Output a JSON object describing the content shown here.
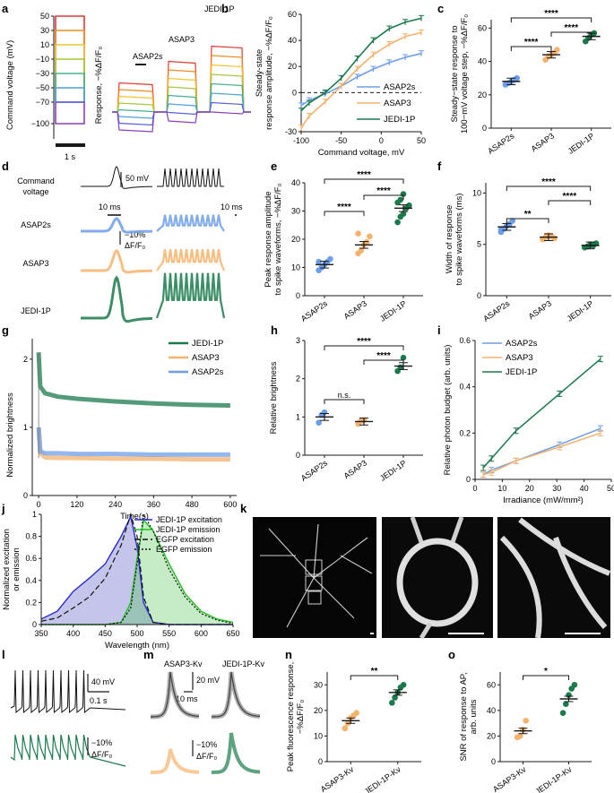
{
  "colors": {
    "asap2s": "#6d9eeb",
    "asap3": "#f6b26b",
    "jedi": "#1a7a4c",
    "axis": "#1a1a1a",
    "bluefill": "#3f3fbf",
    "greenfill": "#3fbf3f"
  },
  "panels": {
    "a": "a",
    "b": "b",
    "c": "c",
    "d": "d",
    "e": "e",
    "f": "f",
    "g": "g",
    "h": "h",
    "i": "i",
    "j": "j",
    "k": "k",
    "l": "l",
    "m": "m",
    "n": "n",
    "o": "o"
  },
  "texts": {
    "a_ylabel": "Command voltage (mV)",
    "a_ticks": [
      "50",
      "30",
      "10",
      "−10",
      "−30",
      "−50",
      "−70",
      "−100"
    ],
    "a_scale": "1 s",
    "a2_ylabel": "Response, −%ΔF/F₀",
    "a2_labels": [
      "ASAP2s",
      "ASAP3",
      "JEDI-1P"
    ],
    "d_command": "Command",
    "d_voltage": "voltage",
    "d_50mv": "50 mV",
    "d_10ms_left": "10 ms",
    "d_10ms_right": "10 ms",
    "d_rows": [
      "ASAP2s",
      "ASAP3",
      "JEDI-1P"
    ],
    "d_dff1": "−10%",
    "d_dff2": "ΔF/F₀",
    "g_xlabel": "Time(s)",
    "g_ylabel": "Normalized brightness",
    "j_ylabel1": "Normalized excitation",
    "j_ylabel2": "or emission",
    "j_xlabel": "Wavelength (nm)",
    "j_legend": [
      "JEDI-1P excitation",
      "JEDI-1P emission",
      "EGFP excitation",
      "EGFP emission"
    ],
    "l_40mv": "40 mV",
    "l_01s": "0.1 s",
    "l_dff1": "−10%",
    "l_dff2": "ΔF/F₀",
    "m_labels": [
      "ASAP3-Kv",
      "JEDI-1P-Kv"
    ],
    "m_20mv": "20 mV",
    "m_10ms": "10 ms",
    "m_dff1": "−10%",
    "m_dff2": "ΔF/F₀"
  },
  "chart_data": [
    {
      "panel": "b",
      "type": "line",
      "xlabel": "Command voltage, mV",
      "ylabel": "Steady-state response amplitude, −%ΔF/F₀",
      "x": [
        -100,
        -90,
        -70,
        -50,
        -30,
        -10,
        10,
        30,
        50
      ],
      "xlim": [
        -100,
        50
      ],
      "ylim": [
        -30,
        60
      ],
      "xticks": [
        "-100",
        "-50",
        "0",
        "50"
      ],
      "yticks": [
        "-30",
        "0",
        "20",
        "40",
        "60"
      ],
      "series": [
        {
          "name": "ASAP2s",
          "values": [
            -10,
            -6,
            -1,
            5,
            12,
            18,
            23,
            27,
            30
          ]
        },
        {
          "name": "ASAP3",
          "values": [
            -27,
            -18,
            -7,
            5,
            18,
            29,
            37,
            43,
            46
          ]
        },
        {
          "name": "JEDI-1P",
          "values": [
            -14,
            -8,
            0,
            11,
            26,
            40,
            49,
            54,
            57
          ]
        }
      ]
    },
    {
      "panel": "c",
      "type": "scatter",
      "ylabel": "Steady−state response to 100−mV voltage step, −%ΔF/F₀",
      "categories": [
        "ASAP2s",
        "ASAP3",
        "JEDI-1P"
      ],
      "means": [
        28,
        44,
        55
      ],
      "ylim": [
        0,
        65
      ],
      "yticks": [
        "0",
        "20",
        "40",
        "60"
      ],
      "points": [
        [
          26,
          27,
          28,
          29,
          30
        ],
        [
          41,
          43,
          44,
          45,
          47
        ],
        [
          52,
          54,
          56,
          57
        ]
      ],
      "significance": [
        {
          "pair": "ASAP2s-ASAP3",
          "label": "****"
        },
        {
          "pair": "ASAP3-JEDI-1P",
          "label": "****"
        },
        {
          "pair": "ASAP2s-JEDI-1P",
          "label": "****"
        }
      ]
    },
    {
      "panel": "e",
      "type": "scatter",
      "ylabel": "Peak response amplitude to spike waveforms, −%ΔF/F₀",
      "categories": [
        "ASAP2s",
        "ASAP3",
        "JEDI-1P"
      ],
      "means": [
        11,
        18,
        31
      ],
      "ylim": [
        0,
        40
      ],
      "yticks": [
        "0",
        "10",
        "20",
        "30",
        "40"
      ],
      "points": [
        [
          9,
          10,
          11,
          12,
          13,
          12,
          10
        ],
        [
          15,
          16,
          18,
          19,
          21,
          22
        ],
        [
          26,
          28,
          29,
          31,
          32,
          33,
          34,
          36
        ]
      ],
      "significance": [
        {
          "pair": "ASAP2s-ASAP3",
          "label": "****"
        },
        {
          "pair": "ASAP3-JEDI-1P",
          "label": "****"
        },
        {
          "pair": "ASAP2s-JEDI-1P",
          "label": "****"
        }
      ]
    },
    {
      "panel": "f",
      "type": "scatter",
      "ylabel": "Width of response to spike waveforms (ms)",
      "categories": [
        "ASAP2s",
        "ASAP3",
        "JEDI-1P"
      ],
      "means": [
        6.7,
        5.7,
        4.9
      ],
      "ylim": [
        0,
        11
      ],
      "yticks": [
        "0",
        "5",
        "10"
      ],
      "points": [
        [
          6.2,
          6.5,
          6.8,
          7.0,
          7.3,
          6.4
        ],
        [
          5.5,
          5.7,
          5.9,
          5.8,
          5.6
        ],
        [
          4.7,
          4.8,
          5.0,
          4.9,
          5.1
        ]
      ],
      "significance": [
        {
          "pair": "ASAP2s-ASAP3",
          "label": "**"
        },
        {
          "pair": "ASAP3-JEDI-1P",
          "label": "****"
        },
        {
          "pair": "ASAP2s-JEDI-1P",
          "label": "****"
        }
      ]
    },
    {
      "panel": "g",
      "type": "line",
      "xlabel": "Time(s)",
      "ylabel": "Normalized brightness",
      "x": [
        0,
        5,
        20,
        60,
        120,
        240,
        360,
        480,
        600
      ],
      "xlim": [
        -20,
        620
      ],
      "ylim": [
        0,
        2.3
      ],
      "xticks": [
        "0",
        "120",
        "240",
        "360",
        "480",
        "600"
      ],
      "yticks": [
        "0",
        "1",
        "2"
      ],
      "series": [
        {
          "name": "JEDI-1P",
          "values": [
            2.1,
            1.6,
            1.5,
            1.45,
            1.42,
            1.38,
            1.35,
            1.33,
            1.32
          ]
        },
        {
          "name": "ASAP3",
          "values": [
            1.0,
            0.62,
            0.56,
            0.55,
            0.55,
            0.54,
            0.54,
            0.53,
            0.53
          ]
        },
        {
          "name": "ASAP2s",
          "values": [
            1.0,
            0.65,
            0.62,
            0.62,
            0.61,
            0.61,
            0.6,
            0.6,
            0.6
          ]
        }
      ]
    },
    {
      "panel": "h",
      "type": "scatter",
      "ylabel": "Relative brightness",
      "categories": [
        "ASAP2s",
        "ASAP3",
        "JEDI-1P"
      ],
      "means": [
        1.0,
        0.88,
        2.33
      ],
      "ylim": [
        0,
        3
      ],
      "yticks": [
        "0",
        "1",
        "2",
        "3"
      ],
      "points": [
        [
          0.85,
          1.05,
          1.12
        ],
        [
          0.82,
          0.9,
          0.92
        ],
        [
          2.2,
          2.3,
          2.55
        ]
      ],
      "significance": [
        {
          "pair": "ASAP2s-ASAP3",
          "label": "n.s."
        },
        {
          "pair": "ASAP3-JEDI-1P",
          "label": "****"
        },
        {
          "pair": "ASAP2s-JEDI-1P",
          "label": "****"
        }
      ]
    },
    {
      "panel": "i",
      "type": "line",
      "xlabel": "Irradiance (mW/mm²)",
      "ylabel": "Relative photon budget (arb. units)",
      "x": [
        3,
        6,
        15,
        31,
        46
      ],
      "xlim": [
        0,
        50
      ],
      "ylim": [
        0,
        0.6
      ],
      "xticks": [
        "0",
        "10",
        "20",
        "30",
        "40",
        "50"
      ],
      "yticks": [
        "0",
        "0.2",
        "0.4",
        "0.6"
      ],
      "series": [
        {
          "name": "ASAP2s",
          "values": [
            0.02,
            0.04,
            0.08,
            0.15,
            0.22
          ]
        },
        {
          "name": "ASAP3",
          "values": [
            0.02,
            0.03,
            0.08,
            0.14,
            0.2
          ]
        },
        {
          "name": "JEDI-1P",
          "values": [
            0.05,
            0.09,
            0.21,
            0.37,
            0.52
          ]
        }
      ]
    },
    {
      "panel": "j",
      "type": "area",
      "xlabel": "Wavelength (nm)",
      "ylabel": "Normalized excitation or emission",
      "x": [
        350,
        375,
        400,
        425,
        450,
        475,
        490,
        500,
        510,
        525,
        550,
        575,
        600,
        625,
        650
      ],
      "xlim": [
        350,
        650
      ],
      "ylim": [
        0,
        1
      ],
      "xticks": [
        "350",
        "400",
        "450",
        "500",
        "550",
        "600",
        "650"
      ],
      "yticks": [
        "0",
        "0.2",
        "0.4",
        "0.6",
        "0.8",
        "1"
      ],
      "series": [
        {
          "name": "JEDI-1P excitation",
          "values": [
            0.05,
            0.12,
            0.3,
            0.42,
            0.55,
            0.8,
            0.98,
            0.7,
            0.2,
            0.02,
            0,
            0,
            0,
            0,
            0
          ]
        },
        {
          "name": "JEDI-1P emission",
          "values": [
            0,
            0,
            0,
            0,
            0,
            0.02,
            0.2,
            0.6,
            0.95,
            0.85,
            0.55,
            0.28,
            0.12,
            0.05,
            0.02
          ]
        },
        {
          "name": "EGFP excitation",
          "values": [
            0.03,
            0.06,
            0.15,
            0.25,
            0.42,
            0.72,
            1.0,
            0.8,
            0.25,
            0.02,
            0,
            0,
            0,
            0,
            0
          ]
        },
        {
          "name": "EGFP emission",
          "values": [
            0,
            0,
            0,
            0,
            0,
            0.02,
            0.15,
            0.55,
            1.0,
            0.85,
            0.5,
            0.25,
            0.1,
            0.04,
            0.01
          ]
        }
      ]
    },
    {
      "panel": "n",
      "type": "scatter",
      "ylabel": "Peak fluorescence response, −%ΔF/F₀",
      "categories": [
        "ASAP3-Kv",
        "JEDI-1P-Kv"
      ],
      "means": [
        16,
        27
      ],
      "ylim": [
        0,
        35
      ],
      "yticks": [
        "0",
        "10",
        "20",
        "30"
      ],
      "points": [
        [
          13,
          15,
          17,
          18,
          19
        ],
        [
          23,
          25,
          27,
          29,
          30
        ]
      ],
      "significance": [
        {
          "pair": "ASAP3-Kv-JEDI-1P-Kv",
          "label": "**"
        }
      ]
    },
    {
      "panel": "o",
      "type": "scatter",
      "ylabel": "SNR of response to AP, arb. units",
      "categories": [
        "ASAP3-Kv",
        "JEDI-1P-Kv"
      ],
      "means": [
        24,
        49
      ],
      "ylim": [
        0,
        70
      ],
      "yticks": [
        "0",
        "20",
        "40",
        "60"
      ],
      "points": [
        [
          19,
          20,
          25,
          32
        ],
        [
          38,
          45,
          52,
          57,
          60
        ]
      ],
      "significance": [
        {
          "pair": "ASAP3-Kv-JEDI-1P-Kv",
          "label": "*"
        }
      ]
    }
  ]
}
